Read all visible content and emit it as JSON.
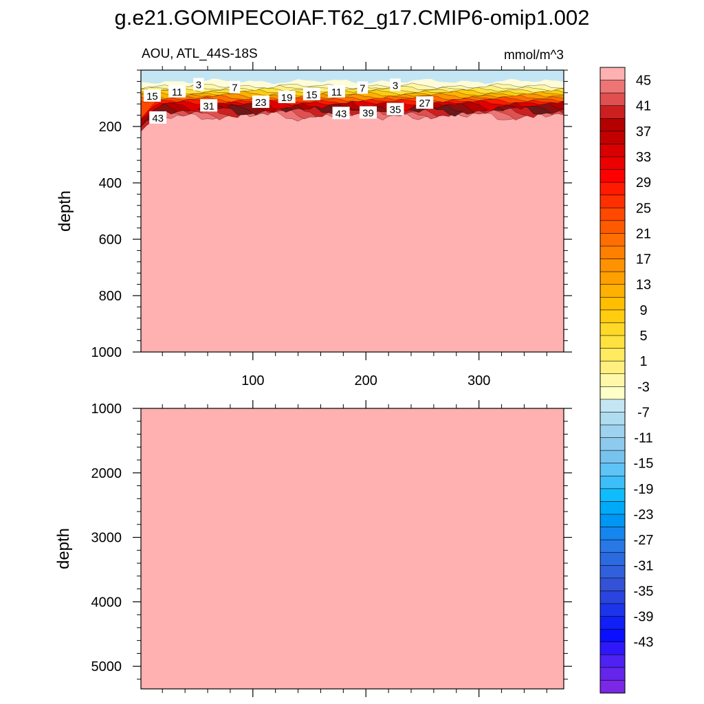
{
  "figure": {
    "title": "g.e21.GOMIPECOIAF.T62_g17.CMIP6-omip1.002",
    "subtitle_left": "AOU, ATL_44S-18S",
    "subtitle_right": "mmol/m^3"
  },
  "chart_data": [
    {
      "type": "heatmap",
      "panel": "upper",
      "title": "AOU, ATL_44S-18S",
      "units": "mmol/m^3",
      "ylabel": "depth",
      "xlabel": "",
      "xlim": [
        1,
        375
      ],
      "ylim": [
        1000,
        0
      ],
      "y_inverted": true,
      "x_ticks": [
        100,
        200,
        300
      ],
      "x_tick_labels": [
        "100",
        "200",
        "300"
      ],
      "y_ticks": [
        200,
        400,
        600,
        800,
        1000
      ],
      "y_tick_labels": [
        "200",
        "400",
        "600",
        "800",
        "1000"
      ],
      "field_summary": {
        "surface_layer_value": -1,
        "surface_layer_bottom_depth": 40,
        "transition_top_depth": 40,
        "transition_bottom_depth": 165,
        "deep_value": 46
      },
      "contour_labels": [
        {
          "text": "15",
          "x": 11,
          "depth": 90
        },
        {
          "text": "11",
          "x": 33,
          "depth": 75
        },
        {
          "text": "3",
          "x": 52,
          "depth": 50
        },
        {
          "text": "7",
          "x": 84,
          "depth": 60
        },
        {
          "text": "31",
          "x": 61,
          "depth": 125
        },
        {
          "text": "43",
          "x": 16,
          "depth": 168
        },
        {
          "text": "23",
          "x": 107,
          "depth": 112
        },
        {
          "text": "19",
          "x": 130,
          "depth": 95
        },
        {
          "text": "15",
          "x": 152,
          "depth": 85
        },
        {
          "text": "11",
          "x": 174,
          "depth": 75
        },
        {
          "text": "7",
          "x": 197,
          "depth": 62
        },
        {
          "text": "3",
          "x": 226,
          "depth": 52
        },
        {
          "text": "43",
          "x": 178,
          "depth": 152
        },
        {
          "text": "39",
          "x": 202,
          "depth": 150
        },
        {
          "text": "35",
          "x": 226,
          "depth": 138
        },
        {
          "text": "27",
          "x": 252,
          "depth": 115
        }
      ]
    },
    {
      "type": "heatmap",
      "panel": "lower",
      "ylabel": "depth",
      "xlabel": "",
      "xlim": [
        1,
        375
      ],
      "ylim": [
        5350,
        1000
      ],
      "y_inverted": true,
      "x_ticks": [
        100,
        200,
        300
      ],
      "y_ticks": [
        1000,
        2000,
        3000,
        4000,
        5000
      ],
      "y_tick_labels": [
        "1000",
        "2000",
        "3000",
        "4000",
        "5000"
      ],
      "field_summary": {
        "deep_value": 46
      }
    }
  ],
  "colorbar": {
    "label_values": [
      "45",
      "41",
      "37",
      "33",
      "29",
      "25",
      "21",
      "17",
      "13",
      "9",
      "5",
      "1",
      "-3",
      "-7",
      "-11",
      "-15",
      "-19",
      "-23",
      "-27",
      "-31",
      "-35",
      "-39",
      "-43"
    ],
    "colors_top_to_bottom": [
      "#ffb0b0",
      "#ee7575",
      "#e05050",
      "#cc2020",
      "#b50000",
      "#c30000",
      "#d80000",
      "#ec0000",
      "#ff0000",
      "#ff1a00",
      "#ff3000",
      "#ff4800",
      "#ff5a00",
      "#ff6e00",
      "#ff8000",
      "#ff9200",
      "#ffa000",
      "#ffb000",
      "#ffbe00",
      "#ffcc10",
      "#ffd828",
      "#ffe240",
      "#ffea60",
      "#fff080",
      "#fff8a8",
      "#ffffc8",
      "#c4e6f4",
      "#b0dcf0",
      "#9ed2ee",
      "#8ecaee",
      "#78c2ee",
      "#5ec4f6",
      "#3ebef8",
      "#10bcfc",
      "#00aaf8",
      "#0096f4",
      "#1486ee",
      "#2878e6",
      "#2c6ae0",
      "#3060dc",
      "#3452d6",
      "#2a44de",
      "#1c34ea",
      "#1020f6",
      "#0a10ff",
      "#2e18fa",
      "#4e22f2",
      "#6426ea",
      "#7a28e6"
    ]
  }
}
